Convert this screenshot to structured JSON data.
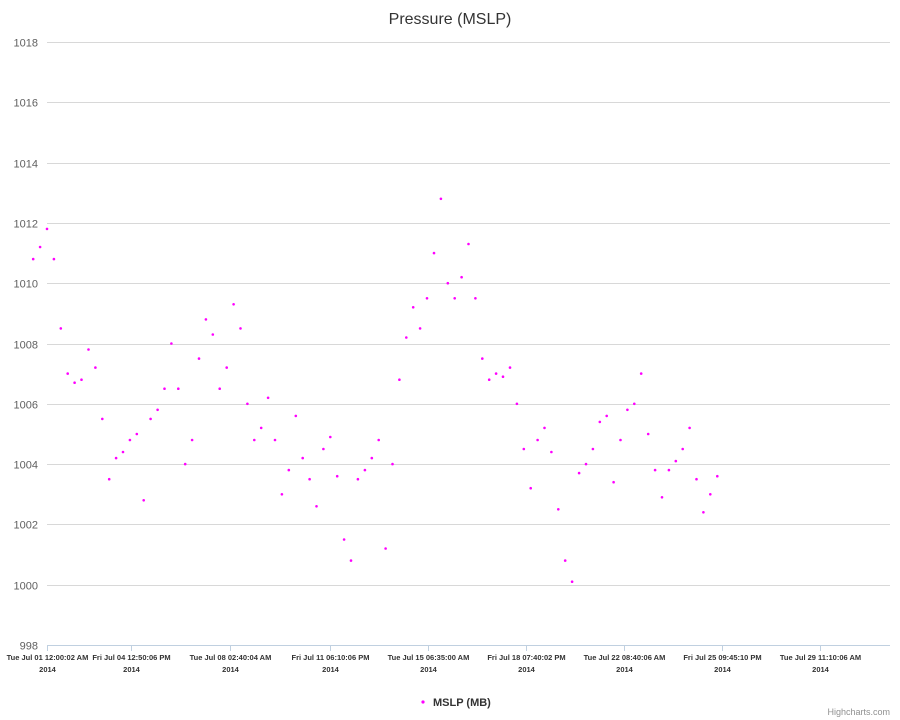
{
  "chart_data": {
    "type": "scatter",
    "title": "Pressure (MSLP)",
    "xlabel": "",
    "ylabel": "",
    "ylim": [
      998,
      1018
    ],
    "yticks": [
      998,
      1000,
      1002,
      1004,
      1006,
      1008,
      1010,
      1012,
      1014,
      1016,
      1018
    ],
    "xlim": [
      "2014-07-01T12:00:02",
      "2014-08-01T00:00:00"
    ],
    "xticks": [
      {
        "x": "2014-07-01T12:00:02",
        "label": "Tue Jul 01 12:00:02 AM",
        "year": "2014"
      },
      {
        "x": "2014-07-04T12:50:06",
        "label": "Fri Jul 04 12:50:06 PM",
        "year": "2014"
      },
      {
        "x": "2014-07-08T02:40:04",
        "label": "Tue Jul 08 02:40:04 AM",
        "year": "2014"
      },
      {
        "x": "2014-07-11T18:10:06",
        "label": "Fri Jul 11 06:10:06 PM",
        "year": "2014"
      },
      {
        "x": "2014-07-15T06:35:00",
        "label": "Tue Jul 15 06:35:00 AM",
        "year": "2014"
      },
      {
        "x": "2014-07-18T19:40:02",
        "label": "Fri Jul 18 07:40:02 PM",
        "year": "2014"
      },
      {
        "x": "2014-07-22T08:40:06",
        "label": "Tue Jul 22 08:40:06 AM",
        "year": "2014"
      },
      {
        "x": "2014-07-25T21:45:10",
        "label": "Fri Jul 25 09:45:10 PM",
        "year": "2014"
      },
      {
        "x": "2014-07-29T11:10:06",
        "label": "Tue Jul 29 11:10:06 AM",
        "year": "2014"
      }
    ],
    "grid": true,
    "legend_position": "bottom-center",
    "series": [
      {
        "name": "MSLP (MB)",
        "color": "#ff00ff",
        "points": [
          [
            "2014-07-01T00:00",
            1010.8
          ],
          [
            "2014-07-01T06:00",
            1011.2
          ],
          [
            "2014-07-01T12:00",
            1011.8
          ],
          [
            "2014-07-01T18:00",
            1010.8
          ],
          [
            "2014-07-02T00:00",
            1008.5
          ],
          [
            "2014-07-02T06:00",
            1007.0
          ],
          [
            "2014-07-02T12:00",
            1006.7
          ],
          [
            "2014-07-02T18:00",
            1006.8
          ],
          [
            "2014-07-03T00:00",
            1007.8
          ],
          [
            "2014-07-03T06:00",
            1007.2
          ],
          [
            "2014-07-03T12:00",
            1005.5
          ],
          [
            "2014-07-03T18:00",
            1003.5
          ],
          [
            "2014-07-04T00:00",
            1004.2
          ],
          [
            "2014-07-04T06:00",
            1004.4
          ],
          [
            "2014-07-04T12:00",
            1004.8
          ],
          [
            "2014-07-04T18:00",
            1005.0
          ],
          [
            "2014-07-05T00:00",
            1002.8
          ],
          [
            "2014-07-05T06:00",
            1005.5
          ],
          [
            "2014-07-05T12:00",
            1005.8
          ],
          [
            "2014-07-05T18:00",
            1006.5
          ],
          [
            "2014-07-06T00:00",
            1008.0
          ],
          [
            "2014-07-06T06:00",
            1006.5
          ],
          [
            "2014-07-06T12:00",
            1004.0
          ],
          [
            "2014-07-06T18:00",
            1004.8
          ],
          [
            "2014-07-07T00:00",
            1007.5
          ],
          [
            "2014-07-07T06:00",
            1008.8
          ],
          [
            "2014-07-07T12:00",
            1008.3
          ],
          [
            "2014-07-07T18:00",
            1006.5
          ],
          [
            "2014-07-08T00:00",
            1007.2
          ],
          [
            "2014-07-08T06:00",
            1009.3
          ],
          [
            "2014-07-08T12:00",
            1008.5
          ],
          [
            "2014-07-08T18:00",
            1006.0
          ],
          [
            "2014-07-09T00:00",
            1004.8
          ],
          [
            "2014-07-09T06:00",
            1005.2
          ],
          [
            "2014-07-09T12:00",
            1006.2
          ],
          [
            "2014-07-09T18:00",
            1004.8
          ],
          [
            "2014-07-10T00:00",
            1003.0
          ],
          [
            "2014-07-10T06:00",
            1003.8
          ],
          [
            "2014-07-10T12:00",
            1005.6
          ],
          [
            "2014-07-10T18:00",
            1004.2
          ],
          [
            "2014-07-11T00:00",
            1003.5
          ],
          [
            "2014-07-11T06:00",
            1002.6
          ],
          [
            "2014-07-11T12:00",
            1004.5
          ],
          [
            "2014-07-11T18:00",
            1004.9
          ],
          [
            "2014-07-12T00:00",
            1003.6
          ],
          [
            "2014-07-12T06:00",
            1001.5
          ],
          [
            "2014-07-12T12:00",
            1000.8
          ],
          [
            "2014-07-12T18:00",
            1003.5
          ],
          [
            "2014-07-13T00:00",
            1003.8
          ],
          [
            "2014-07-13T06:00",
            1004.2
          ],
          [
            "2014-07-13T12:00",
            1004.8
          ],
          [
            "2014-07-13T18:00",
            1001.2
          ],
          [
            "2014-07-14T00:00",
            1004.0
          ],
          [
            "2014-07-14T06:00",
            1006.8
          ],
          [
            "2014-07-14T12:00",
            1008.2
          ],
          [
            "2014-07-14T18:00",
            1009.2
          ],
          [
            "2014-07-15T00:00",
            1008.5
          ],
          [
            "2014-07-15T06:00",
            1009.5
          ],
          [
            "2014-07-15T12:00",
            1011.0
          ],
          [
            "2014-07-15T18:00",
            1012.8
          ],
          [
            "2014-07-16T00:00",
            1010.0
          ],
          [
            "2014-07-16T06:00",
            1009.5
          ],
          [
            "2014-07-16T12:00",
            1010.2
          ],
          [
            "2014-07-16T18:00",
            1011.3
          ],
          [
            "2014-07-17T00:00",
            1009.5
          ],
          [
            "2014-07-17T06:00",
            1007.5
          ],
          [
            "2014-07-17T12:00",
            1006.8
          ],
          [
            "2014-07-17T18:00",
            1007.0
          ],
          [
            "2014-07-18T00:00",
            1006.9
          ],
          [
            "2014-07-18T06:00",
            1007.2
          ],
          [
            "2014-07-18T12:00",
            1006.0
          ],
          [
            "2014-07-18T18:00",
            1004.5
          ],
          [
            "2014-07-19T00:00",
            1003.2
          ],
          [
            "2014-07-19T06:00",
            1004.8
          ],
          [
            "2014-07-19T12:00",
            1005.2
          ],
          [
            "2014-07-19T18:00",
            1004.4
          ],
          [
            "2014-07-20T00:00",
            1002.5
          ],
          [
            "2014-07-20T06:00",
            1000.8
          ],
          [
            "2014-07-20T12:00",
            1000.1
          ],
          [
            "2014-07-20T18:00",
            1003.7
          ],
          [
            "2014-07-21T00:00",
            1004.0
          ],
          [
            "2014-07-21T06:00",
            1004.5
          ],
          [
            "2014-07-21T12:00",
            1005.4
          ],
          [
            "2014-07-21T18:00",
            1005.6
          ],
          [
            "2014-07-22T00:00",
            1003.4
          ],
          [
            "2014-07-22T06:00",
            1004.8
          ],
          [
            "2014-07-22T12:00",
            1005.8
          ],
          [
            "2014-07-22T18:00",
            1006.0
          ],
          [
            "2014-07-23T00:00",
            1007.0
          ],
          [
            "2014-07-23T06:00",
            1005.0
          ],
          [
            "2014-07-23T12:00",
            1003.8
          ],
          [
            "2014-07-23T18:00",
            1002.9
          ],
          [
            "2014-07-24T00:00",
            1003.8
          ],
          [
            "2014-07-24T06:00",
            1004.1
          ],
          [
            "2014-07-24T12:00",
            1004.5
          ],
          [
            "2014-07-24T18:00",
            1005.2
          ],
          [
            "2014-07-25T00:00",
            1003.5
          ],
          [
            "2014-07-25T06:00",
            1002.4
          ],
          [
            "2014-07-25T12:00",
            1003.0
          ],
          [
            "2014-07-25T18:00",
            1003.6
          ]
        ]
      }
    ]
  },
  "legend": {
    "label": "MSLP (MB)"
  },
  "credits": "Highcharts.com"
}
